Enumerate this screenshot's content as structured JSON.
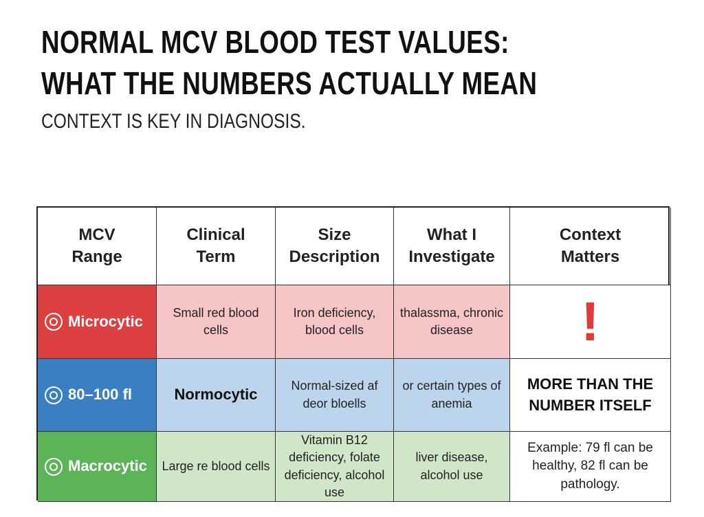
{
  "header": {
    "title_line1": "NORMAL MCV BLOOD TEST VALUES:",
    "title_line2": "WHAT THE NUMBERS ACTUALLY MEAN",
    "subtitle": "CONTEXT IS KEY IN DIAGNOSIS."
  },
  "table": {
    "columns": [
      "MCV Range",
      "Clinical Term",
      "Size Description",
      "What I Investigate",
      "Context Matters"
    ],
    "rows": [
      [
        "Microcytic",
        "Small red blood cells",
        "Iron deficiency, blood cells",
        "thalassma, chronic disease",
        "!"
      ],
      [
        "80–100 fl",
        "Normocytic",
        "Normal-sized af deor bloells",
        "or certain types of anemia",
        "MORE THAN THE NUMBER ITSELF"
      ],
      [
        "Macrocytic",
        "Large re blood cells",
        "Vitamin B12 deficiency, folate deficiency, alcohol use",
        "liver disease, alcohol use",
        "Example: 79 fl can be healthy, 82 fl can be pathology."
      ]
    ]
  }
}
